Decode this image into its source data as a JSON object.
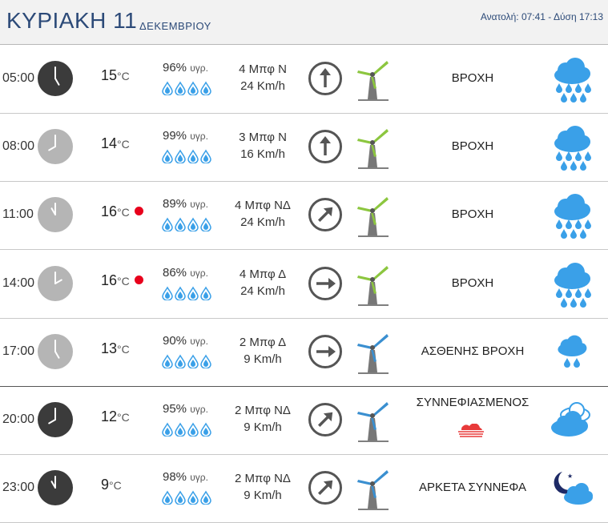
{
  "header": {
    "day_title": "ΚΥΡΙΑΚΗ 11",
    "month": "ΔΕΚΕΜΒΡΙΟΥ",
    "sun_info": "Ανατολή: 07:41  - Δύση 17:13"
  },
  "colors": {
    "title": "#2c4a78",
    "rain_blue": "#3aa0e8",
    "hot_dot": "#e8001c",
    "turbine_green": "#8cc63f",
    "turbine_blue": "#3a8fd0"
  },
  "rows": [
    {
      "time": "05:00",
      "clock_style": "dark",
      "temp": "15",
      "temp_unit": "°C",
      "hot": false,
      "humidity": "96%",
      "humidity_label": "υγρ.",
      "wind_bf": "4 Μπφ Ν",
      "wind_kmh": "24 Km/h",
      "wind_dir": "N",
      "turbine": "green",
      "description": "ΒΡΟΧΗ",
      "weather_icon": "rain-cloud-icon"
    },
    {
      "time": "08:00",
      "clock_style": "light",
      "temp": "14",
      "temp_unit": "°C",
      "hot": false,
      "humidity": "99%",
      "humidity_label": "υγρ.",
      "wind_bf": "3 Μπφ Ν",
      "wind_kmh": "16 Km/h",
      "wind_dir": "N",
      "turbine": "green",
      "description": "ΒΡΟΧΗ",
      "weather_icon": "rain-cloud-icon"
    },
    {
      "time": "11:00",
      "clock_style": "light",
      "temp": "16",
      "temp_unit": "°C",
      "hot": true,
      "humidity": "89%",
      "humidity_label": "υγρ.",
      "wind_bf": "4 Μπφ ΝΔ",
      "wind_kmh": "24 Km/h",
      "wind_dir": "NE",
      "turbine": "green",
      "description": "ΒΡΟΧΗ",
      "weather_icon": "rain-cloud-icon"
    },
    {
      "time": "14:00",
      "clock_style": "light",
      "temp": "16",
      "temp_unit": "°C",
      "hot": true,
      "humidity": "86%",
      "humidity_label": "υγρ.",
      "wind_bf": "4 Μπφ Δ",
      "wind_kmh": "24 Km/h",
      "wind_dir": "E",
      "turbine": "green",
      "description": "ΒΡΟΧΗ",
      "weather_icon": "rain-cloud-icon"
    },
    {
      "time": "17:00",
      "clock_style": "light",
      "temp": "13",
      "temp_unit": "°C",
      "hot": false,
      "humidity": "90%",
      "humidity_label": "υγρ.",
      "wind_bf": "2 Μπφ Δ",
      "wind_kmh": "9 Km/h",
      "wind_dir": "E",
      "turbine": "blue",
      "description": "ΑΣΘΕΝΗΣ ΒΡΟΧΗ",
      "weather_icon": "light-rain-cloud-icon"
    },
    {
      "time": "20:00",
      "clock_style": "dark",
      "temp": "12",
      "temp_unit": "°C",
      "hot": false,
      "humidity": "95%",
      "humidity_label": "υγρ.",
      "wind_bf": "2 Μπφ ΝΔ",
      "wind_kmh": "9 Km/h",
      "wind_dir": "NE",
      "turbine": "blue",
      "description": "ΣΥΝΝΕΦΙΑΣΜΕΝΟΣ",
      "weather_icon": "clouds-icon"
    },
    {
      "time": "23:00",
      "clock_style": "dark",
      "temp": "9",
      "temp_unit": "°C",
      "hot": false,
      "humidity": "98%",
      "humidity_label": "υγρ.",
      "wind_bf": "2 Μπφ ΝΔ",
      "wind_kmh": "9 Km/h",
      "wind_dir": "NE",
      "turbine": "blue",
      "description": "ΑΡΚΕΤΑ ΣΥΝΝΕΦΑ",
      "weather_icon": "moon-cloud-icon"
    }
  ]
}
